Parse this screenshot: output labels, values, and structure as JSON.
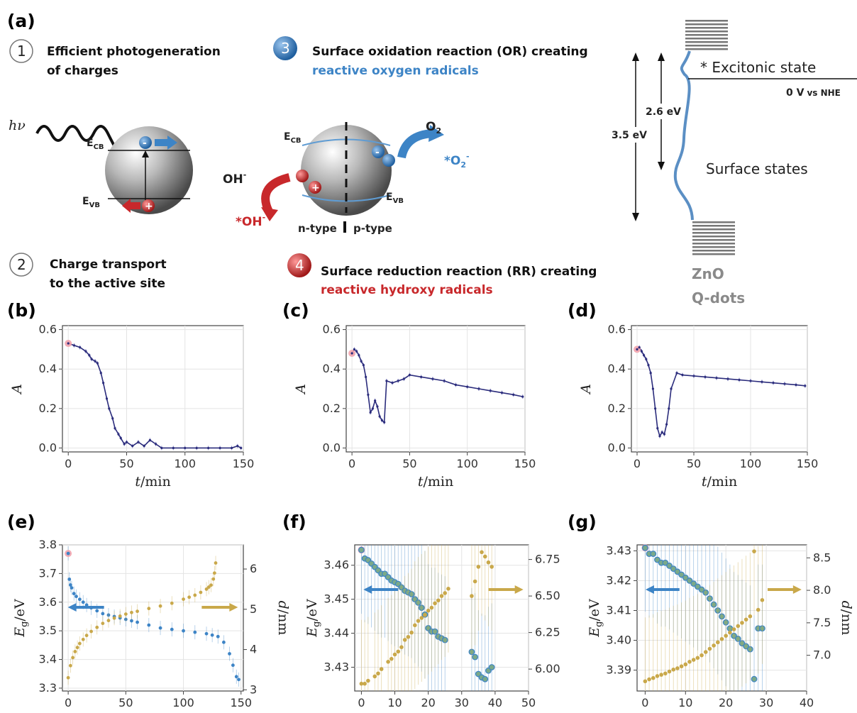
{
  "panels": {
    "a": "(a)",
    "b": "(b)",
    "c": "(c)",
    "d": "(d)",
    "e": "(e)",
    "f": "(f)",
    "g": "(g)"
  },
  "schematic": {
    "step1_num": "1",
    "step1_line1": "Efficient photogeneration",
    "step1_line2": "of charges",
    "step2_num": "2",
    "step2_line1": "Charge transport",
    "step2_line2": "to the active site",
    "step3_num": "3",
    "step3_line1": "Surface oxidation reaction (OR) creating",
    "step3_line2": "reactive oxygen radicals",
    "step4_num": "4",
    "step4_line1": "Surface reduction reaction (RR) creating",
    "step4_line2": "reactive hydroxy radicals",
    "hv": "hν",
    "ecb": "E",
    "ecb_sub": "CB",
    "evb": "E",
    "evb_sub": "VB",
    "oh_minus": "OH",
    "oh_radical": "*OH",
    "o2": "O",
    "o2_radical": "*O",
    "ntype": "n-type",
    "ptype": "p-type",
    "minus": "-",
    "plus": "+"
  },
  "energy_diagram": {
    "excitonic": "* Excitonic state",
    "zero_v": "0 V",
    "vs_nhe": "vs NHE",
    "gap_26": "2.6 eV",
    "gap_35": "3.5 eV",
    "surface_states": "Surface states",
    "zno": "ZnO",
    "qdots": "Q-dots"
  },
  "colors": {
    "absorbance_series": "#2b2c7c",
    "eg_series": "#3d84c6",
    "d_series": "#c9a84a",
    "first_point": "#f2a3ad",
    "red_arrow": "#c8282b",
    "blue_arrow": "#3d84c6",
    "grid": "#e4e4e4"
  },
  "chart_data": [
    {
      "panel": "b",
      "type": "line",
      "xlabel": "t/min",
      "ylabel": "A",
      "xlim": [
        -5,
        150
      ],
      "ylim": [
        -0.02,
        0.62
      ],
      "xticks": [
        "0",
        "50",
        "100",
        "150"
      ],
      "yticks": [
        "0.0",
        "0.2",
        "0.4",
        "0.6"
      ],
      "x": [
        0,
        5,
        10,
        15,
        18,
        20,
        23,
        25,
        28,
        30,
        33,
        35,
        38,
        40,
        43,
        45,
        48,
        50,
        55,
        60,
        65,
        70,
        75,
        80,
        90,
        100,
        110,
        120,
        130,
        140,
        145,
        148
      ],
      "y": [
        0.53,
        0.52,
        0.51,
        0.49,
        0.47,
        0.45,
        0.44,
        0.43,
        0.38,
        0.33,
        0.25,
        0.2,
        0.15,
        0.1,
        0.07,
        0.05,
        0.02,
        0.03,
        0.01,
        0.03,
        0.01,
        0.04,
        0.02,
        0.0,
        0.0,
        0.0,
        0.0,
        0.0,
        0.0,
        0.0,
        0.01,
        0.0
      ]
    },
    {
      "panel": "c",
      "type": "line",
      "xlabel": "t/min",
      "ylabel": "A",
      "xlim": [
        -5,
        150
      ],
      "ylim": [
        -0.02,
        0.62
      ],
      "xticks": [
        "0",
        "50",
        "100",
        "150"
      ],
      "yticks": [
        "0.0",
        "0.2",
        "0.4",
        "0.6"
      ],
      "x": [
        0,
        2,
        4,
        6,
        8,
        10,
        12,
        14,
        16,
        18,
        20,
        22,
        24,
        26,
        28,
        30,
        35,
        40,
        45,
        50,
        60,
        70,
        80,
        90,
        100,
        110,
        120,
        130,
        140,
        148
      ],
      "y": [
        0.48,
        0.5,
        0.49,
        0.47,
        0.44,
        0.42,
        0.36,
        0.27,
        0.18,
        0.2,
        0.24,
        0.21,
        0.16,
        0.14,
        0.13,
        0.34,
        0.33,
        0.34,
        0.35,
        0.37,
        0.36,
        0.35,
        0.34,
        0.32,
        0.31,
        0.3,
        0.29,
        0.28,
        0.27,
        0.26
      ]
    },
    {
      "panel": "d",
      "type": "line",
      "xlabel": "t/min",
      "ylabel": "A",
      "xlim": [
        -5,
        150
      ],
      "ylim": [
        -0.02,
        0.62
      ],
      "xticks": [
        "0",
        "50",
        "100",
        "150"
      ],
      "yticks": [
        "0.0",
        "0.2",
        "0.4",
        "0.6"
      ],
      "x": [
        0,
        2,
        4,
        6,
        8,
        10,
        12,
        14,
        16,
        18,
        20,
        22,
        24,
        26,
        28,
        30,
        35,
        40,
        50,
        60,
        70,
        80,
        90,
        100,
        110,
        120,
        130,
        140,
        148
      ],
      "y": [
        0.5,
        0.51,
        0.49,
        0.47,
        0.45,
        0.42,
        0.38,
        0.3,
        0.2,
        0.1,
        0.06,
        0.08,
        0.07,
        0.12,
        0.2,
        0.3,
        0.38,
        0.37,
        0.365,
        0.36,
        0.355,
        0.35,
        0.345,
        0.34,
        0.335,
        0.33,
        0.325,
        0.32,
        0.315
      ]
    },
    {
      "panel": "e",
      "type": "scatter",
      "xlabel": "t/min",
      "ylabel": "E_g/eV",
      "y2label": "d/nm",
      "xlim": [
        -5,
        152
      ],
      "ylim": [
        3.29,
        3.8
      ],
      "y2lim": [
        2.97,
        6.6
      ],
      "xticks": [
        "0",
        "50",
        "100",
        "150"
      ],
      "yticks": [
        "3.3",
        "3.4",
        "3.5",
        "3.6",
        "3.7",
        "3.8"
      ],
      "y2ticks": [
        "3",
        "4",
        "5",
        "6"
      ],
      "series": [
        {
          "axis": "left",
          "x": [
            0,
            1,
            2,
            3,
            5,
            7,
            10,
            13,
            16,
            20,
            25,
            30,
            35,
            40,
            45,
            50,
            55,
            60,
            70,
            80,
            90,
            100,
            110,
            120,
            125,
            130,
            135,
            140,
            143,
            146,
            148
          ],
          "values": [
            3.77,
            3.68,
            3.66,
            3.65,
            3.63,
            3.62,
            3.61,
            3.6,
            3.59,
            3.58,
            3.57,
            3.56,
            3.555,
            3.55,
            3.545,
            3.54,
            3.535,
            3.53,
            3.52,
            3.51,
            3.505,
            3.5,
            3.495,
            3.49,
            3.485,
            3.48,
            3.46,
            3.42,
            3.38,
            3.34,
            3.33
          ]
        },
        {
          "axis": "right",
          "x": [
            0,
            2,
            4,
            6,
            8,
            10,
            13,
            16,
            20,
            25,
            30,
            35,
            40,
            45,
            50,
            55,
            60,
            70,
            80,
            90,
            100,
            105,
            110,
            115,
            120,
            122,
            124,
            126,
            127,
            128
          ],
          "values": [
            3.3,
            3.6,
            3.8,
            3.95,
            4.05,
            4.15,
            4.25,
            4.35,
            4.45,
            4.55,
            4.65,
            4.72,
            4.78,
            4.83,
            4.88,
            4.92,
            4.95,
            5.02,
            5.08,
            5.15,
            5.25,
            5.3,
            5.35,
            5.42,
            5.5,
            5.55,
            5.6,
            5.75,
            5.9,
            6.15
          ]
        }
      ]
    },
    {
      "panel": "f",
      "type": "scatter",
      "xlabel": "t/min",
      "ylabel": "E_g/eV",
      "xlim": [
        -2,
        50
      ],
      "ylim": [
        3.423,
        3.466
      ],
      "y2lim": [
        5.85,
        6.85
      ],
      "xticks": [
        "0",
        "10",
        "20",
        "30",
        "40",
        "50"
      ],
      "yticks": [
        "3.43",
        "3.44",
        "3.45",
        "3.46"
      ],
      "y2ticks": [
        "6.00",
        "6.25",
        "6.50",
        "6.75"
      ],
      "series": [
        {
          "axis": "left",
          "x": [
            0,
            1,
            2,
            3,
            4,
            5,
            6,
            7,
            8,
            9,
            10,
            11,
            12,
            13,
            14,
            15,
            16,
            17,
            18,
            19,
            20,
            21,
            22,
            23,
            24,
            25,
            33,
            34,
            35,
            36,
            37,
            38,
            39
          ],
          "values": [
            3.4645,
            3.462,
            3.4615,
            3.4605,
            3.4595,
            3.4585,
            3.4575,
            3.4575,
            3.4565,
            3.4555,
            3.455,
            3.4545,
            3.4535,
            3.4525,
            3.452,
            3.4515,
            3.45,
            3.449,
            3.4475,
            3.4455,
            3.4415,
            3.4405,
            3.4405,
            3.439,
            3.4385,
            3.438,
            3.4345,
            3.433,
            3.428,
            3.427,
            3.4265,
            3.429,
            3.43
          ]
        },
        {
          "axis": "right",
          "x": [
            0,
            1,
            2,
            4,
            5,
            6,
            8,
            9,
            10,
            11,
            12,
            13,
            14,
            15,
            16,
            17,
            18,
            19,
            20,
            21,
            22,
            23,
            24,
            25,
            26,
            33,
            34,
            35,
            36,
            37,
            38,
            39
          ],
          "values": [
            5.9,
            5.9,
            5.92,
            5.95,
            5.97,
            6.0,
            6.05,
            6.07,
            6.1,
            6.12,
            6.15,
            6.2,
            6.22,
            6.25,
            6.3,
            6.33,
            6.35,
            6.37,
            6.4,
            6.42,
            6.45,
            6.47,
            6.5,
            6.52,
            6.55,
            6.5,
            6.6,
            6.7,
            6.8,
            6.77,
            6.73,
            6.7
          ]
        }
      ]
    },
    {
      "panel": "g",
      "type": "scatter",
      "xlabel": "t/min",
      "ylabel": "E_g/eV",
      "y2label": "d/nm",
      "xlim": [
        -2,
        40
      ],
      "ylim": [
        3.383,
        3.432
      ],
      "y2lim": [
        6.45,
        8.7
      ],
      "xticks": [
        "0",
        "10",
        "20",
        "30",
        "40"
      ],
      "yticks": [
        "3.39",
        "3.40",
        "3.41",
        "3.42",
        "3.43"
      ],
      "y2ticks": [
        "7.0",
        "7.5",
        "8.0",
        "8.5"
      ],
      "series": [
        {
          "axis": "left",
          "x": [
            0,
            1,
            2,
            3,
            4,
            5,
            6,
            7,
            8,
            9,
            10,
            11,
            12,
            13,
            14,
            15,
            16,
            17,
            18,
            19,
            20,
            21,
            22,
            23,
            24,
            25,
            26,
            27,
            28,
            29
          ],
          "values": [
            3.431,
            3.429,
            3.429,
            3.427,
            3.426,
            3.426,
            3.425,
            3.424,
            3.423,
            3.422,
            3.421,
            3.42,
            3.419,
            3.418,
            3.417,
            3.416,
            3.414,
            3.412,
            3.41,
            3.408,
            3.406,
            3.404,
            3.4015,
            3.4005,
            3.399,
            3.398,
            3.397,
            3.387,
            3.404,
            3.404
          ]
        },
        {
          "axis": "right",
          "x": [
            0,
            1,
            2,
            3,
            4,
            5,
            6,
            7,
            8,
            9,
            10,
            11,
            12,
            13,
            14,
            15,
            16,
            17,
            18,
            19,
            20,
            21,
            22,
            23,
            24,
            25,
            26,
            27,
            28,
            29
          ],
          "values": [
            6.6,
            6.63,
            6.65,
            6.68,
            6.7,
            6.72,
            6.75,
            6.78,
            6.8,
            6.83,
            6.86,
            6.9,
            6.93,
            6.96,
            7.0,
            7.05,
            7.1,
            7.15,
            7.2,
            7.25,
            7.3,
            7.35,
            7.4,
            7.45,
            7.5,
            7.55,
            7.6,
            8.6,
            7.7,
            7.85
          ]
        }
      ]
    }
  ]
}
